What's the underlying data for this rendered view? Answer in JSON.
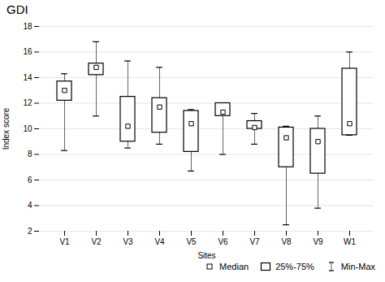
{
  "chart_data": {
    "type": "box",
    "title": "GDI",
    "xlabel": "Sites",
    "ylabel": "Index score",
    "categories": [
      "V1",
      "V2",
      "V3",
      "V4",
      "V5",
      "V6",
      "V7",
      "V8",
      "V9",
      "W1"
    ],
    "boxes": [
      {
        "median": 13.0,
        "q1": 12.2,
        "q3": 13.7,
        "min": 8.3,
        "max": 14.3
      },
      {
        "median": 14.8,
        "q1": 14.2,
        "q3": 15.1,
        "min": 11.0,
        "max": 16.8
      },
      {
        "median": 10.2,
        "q1": 9.0,
        "q3": 12.5,
        "min": 8.5,
        "max": 15.3
      },
      {
        "median": 11.7,
        "q1": 9.7,
        "q3": 12.4,
        "min": 8.8,
        "max": 14.8
      },
      {
        "median": 10.4,
        "q1": 8.2,
        "q3": 11.4,
        "min": 6.7,
        "max": 11.5
      },
      {
        "median": 11.3,
        "q1": 11.0,
        "q3": 12.0,
        "min": 8.0,
        "max": 12.0
      },
      {
        "median": 10.1,
        "q1": 10.0,
        "q3": 10.6,
        "min": 8.8,
        "max": 11.2
      },
      {
        "median": 9.3,
        "q1": 7.0,
        "q3": 10.1,
        "min": 2.5,
        "max": 10.2
      },
      {
        "median": 9.0,
        "q1": 6.5,
        "q3": 10.0,
        "min": 3.8,
        "max": 11.0
      },
      {
        "median": 10.4,
        "q1": 9.5,
        "q3": 14.7,
        "min": 9.5,
        "max": 16.0
      }
    ],
    "ylim": [
      2,
      18
    ],
    "yticks": [
      2,
      4,
      6,
      8,
      10,
      12,
      14,
      16,
      18
    ],
    "grid": true,
    "legend": "lower right",
    "legend_labels": [
      "Median",
      "25%-75%",
      "Min-Max"
    ]
  }
}
